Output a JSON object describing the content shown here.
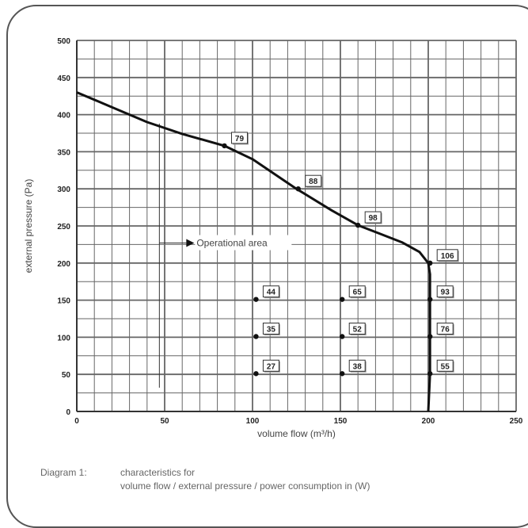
{
  "chart_data": {
    "type": "line",
    "xlabel": "volume flow (m³/h)",
    "ylabel": "external pressure (Pa)",
    "xlim": [
      0,
      250
    ],
    "ylim": [
      0,
      500
    ],
    "x_ticks": [
      0,
      50,
      100,
      150,
      200,
      250
    ],
    "y_ticks": [
      0,
      50,
      100,
      150,
      200,
      250,
      300,
      350,
      400,
      450,
      500
    ],
    "grid": true,
    "series": [
      {
        "x": [
          0,
          20,
          40,
          60,
          84,
          100,
          125,
          145,
          160,
          172,
          185,
          195,
          200,
          201,
          201,
          201,
          201,
          200
        ],
        "y": [
          430,
          410,
          390,
          374,
          358,
          340,
          300,
          271,
          251,
          240,
          228,
          215,
          200,
          185,
          150,
          100,
          50,
          0
        ]
      }
    ],
    "points": [
      {
        "x": 84,
        "y": 358,
        "label": "79"
      },
      {
        "x": 126,
        "y": 300,
        "label": "88"
      },
      {
        "x": 160,
        "y": 251,
        "label": "98"
      },
      {
        "x": 201,
        "y": 200,
        "label": "106"
      },
      {
        "x": 102,
        "y": 151,
        "label": "44"
      },
      {
        "x": 151,
        "y": 151,
        "label": "65"
      },
      {
        "x": 201,
        "y": 151,
        "label": "93"
      },
      {
        "x": 102,
        "y": 101,
        "label": "35"
      },
      {
        "x": 151,
        "y": 101,
        "label": "52"
      },
      {
        "x": 201,
        "y": 101,
        "label": "76"
      },
      {
        "x": 102,
        "y": 51,
        "label": "27"
      },
      {
        "x": 151,
        "y": 51,
        "label": "38"
      },
      {
        "x": 201,
        "y": 51,
        "label": "55"
      }
    ],
    "annotation": {
      "text": "Operational area",
      "x": 47,
      "y": 227
    }
  },
  "caption": {
    "label": "Diagram 1:",
    "line1": "characteristics for",
    "line2": "volume flow / external pressure / power consumption in (W)"
  }
}
